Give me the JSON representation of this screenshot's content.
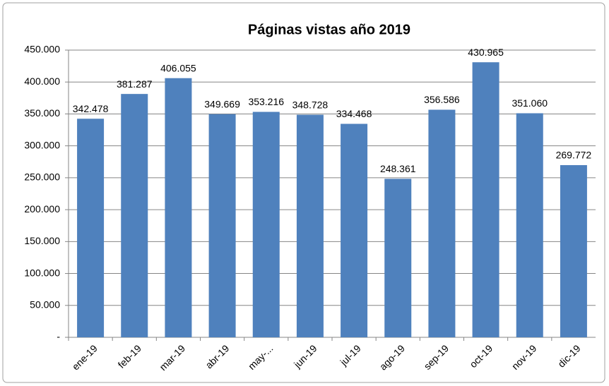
{
  "chart_data": {
    "type": "bar",
    "title": "Páginas vistas año 2019",
    "categories": [
      "ene-19",
      "feb-19",
      "mar-19",
      "abr-19",
      "may-...",
      "jun-19",
      "jul-19",
      "ago-19",
      "sep-19",
      "oct-19",
      "nov-19",
      "dic-19"
    ],
    "values": [
      342478,
      381287,
      406055,
      349669,
      353216,
      348728,
      334468,
      248361,
      356586,
      430965,
      351060,
      269772
    ],
    "value_labels": [
      "342.478",
      "381.287",
      "406.055",
      "349.669",
      "353.216",
      "348.728",
      "334.468",
      "248.361",
      "356.586",
      "430.965",
      "351.060",
      "269.772"
    ],
    "color": "#4f81bd",
    "ylim": [
      0,
      450000
    ],
    "yticks": [
      {
        "value": 0,
        "label": "-"
      },
      {
        "value": 50000,
        "label": "50.000"
      },
      {
        "value": 100000,
        "label": "100.000"
      },
      {
        "value": 150000,
        "label": "150.000"
      },
      {
        "value": 200000,
        "label": "200.000"
      },
      {
        "value": 250000,
        "label": "250.000"
      },
      {
        "value": 300000,
        "label": "300.000"
      },
      {
        "value": 350000,
        "label": "350.000"
      },
      {
        "value": 400000,
        "label": "400.000"
      },
      {
        "value": 450000,
        "label": "450.000"
      }
    ],
    "grid": true
  }
}
